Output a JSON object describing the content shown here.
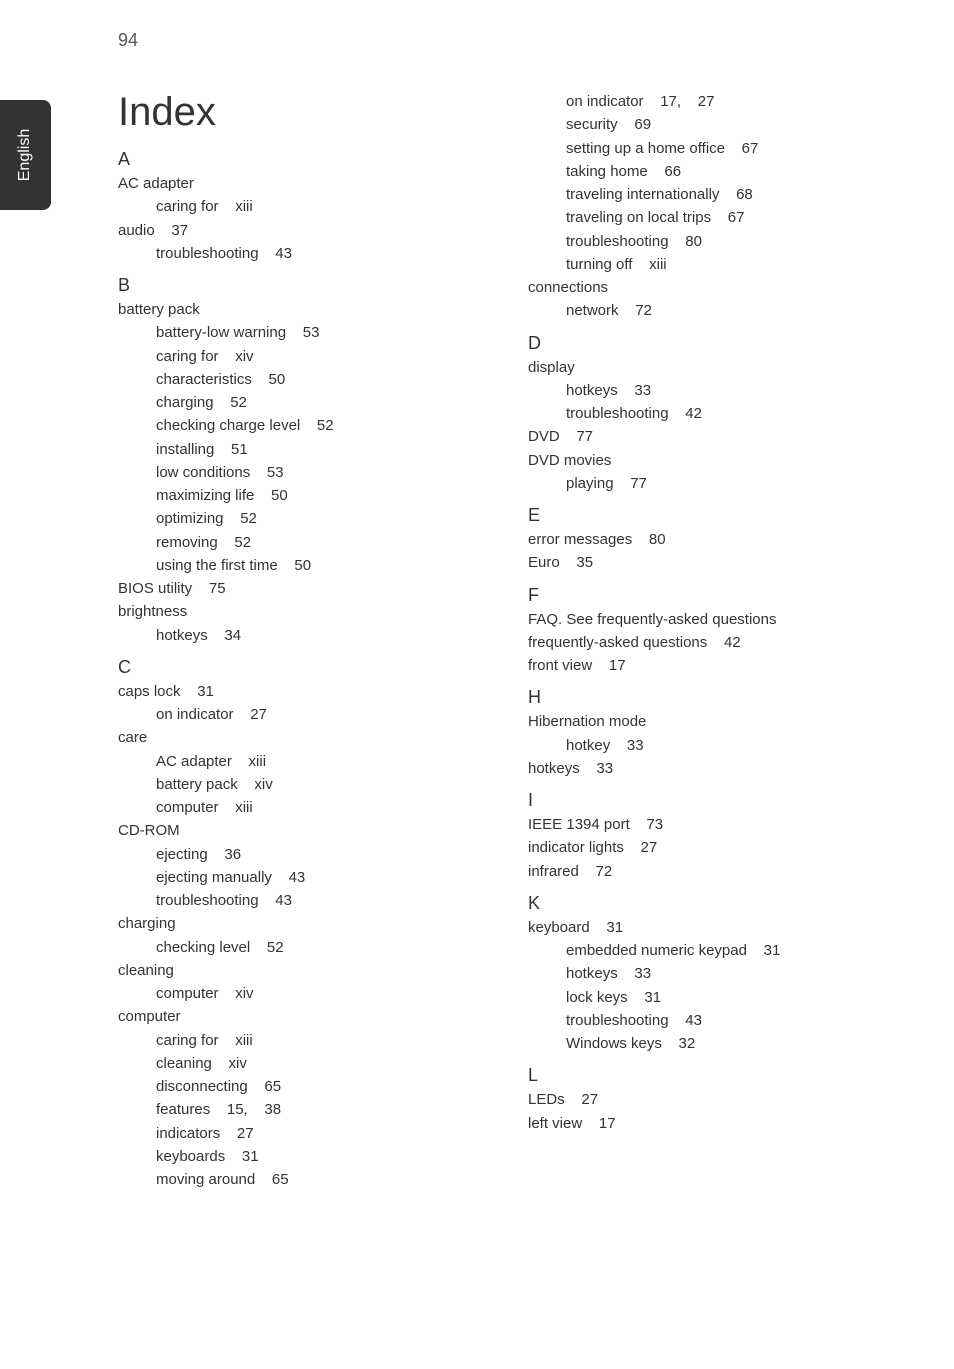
{
  "page_number": "94",
  "side_tab_label": "English",
  "index_title": "Index",
  "left_column": [
    {
      "type": "letter",
      "text": "A"
    },
    {
      "type": "top",
      "text": "AC adapter"
    },
    {
      "type": "sub",
      "text": "caring for    xiii"
    },
    {
      "type": "top",
      "text": "audio    37"
    },
    {
      "type": "sub",
      "text": "troubleshooting    43"
    },
    {
      "type": "letter",
      "text": "B"
    },
    {
      "type": "top",
      "text": "battery pack"
    },
    {
      "type": "sub",
      "text": "battery-low warning    53"
    },
    {
      "type": "sub",
      "text": "caring for    xiv"
    },
    {
      "type": "sub",
      "text": "characteristics    50"
    },
    {
      "type": "sub",
      "text": "charging    52"
    },
    {
      "type": "sub",
      "text": "checking charge level    52"
    },
    {
      "type": "sub",
      "text": "installing    51"
    },
    {
      "type": "sub",
      "text": "low conditions    53"
    },
    {
      "type": "sub",
      "text": "maximizing life    50"
    },
    {
      "type": "sub",
      "text": "optimizing    52"
    },
    {
      "type": "sub",
      "text": "removing    52"
    },
    {
      "type": "sub",
      "text": "using the first time    50"
    },
    {
      "type": "top",
      "text": "BIOS utility    75"
    },
    {
      "type": "top",
      "text": "brightness"
    },
    {
      "type": "sub",
      "text": "hotkeys    34"
    },
    {
      "type": "letter",
      "text": "C"
    },
    {
      "type": "top",
      "text": "caps lock    31"
    },
    {
      "type": "sub",
      "text": "on indicator    27"
    },
    {
      "type": "top",
      "text": "care"
    },
    {
      "type": "sub",
      "text": "AC adapter    xiii"
    },
    {
      "type": "sub",
      "text": "battery pack    xiv"
    },
    {
      "type": "sub",
      "text": "computer    xiii"
    },
    {
      "type": "top",
      "text": "CD-ROM"
    },
    {
      "type": "sub",
      "text": "ejecting    36"
    },
    {
      "type": "sub",
      "text": "ejecting manually    43"
    },
    {
      "type": "sub",
      "text": "troubleshooting    43"
    },
    {
      "type": "top",
      "text": "charging"
    },
    {
      "type": "sub",
      "text": "checking level    52"
    },
    {
      "type": "top",
      "text": "cleaning"
    },
    {
      "type": "sub",
      "text": "computer    xiv"
    },
    {
      "type": "top",
      "text": "computer"
    },
    {
      "type": "sub",
      "text": "caring for    xiii"
    },
    {
      "type": "sub",
      "text": "cleaning    xiv"
    },
    {
      "type": "sub",
      "text": "disconnecting    65"
    },
    {
      "type": "sub",
      "text": "features    15,    38"
    },
    {
      "type": "sub",
      "text": "indicators    27"
    },
    {
      "type": "sub",
      "text": "keyboards    31"
    },
    {
      "type": "sub",
      "text": "moving around    65"
    }
  ],
  "right_column": [
    {
      "type": "sub",
      "text": "on indicator    17,    27"
    },
    {
      "type": "sub",
      "text": "security    69"
    },
    {
      "type": "sub",
      "text": "setting up a home office    67"
    },
    {
      "type": "sub",
      "text": "taking home    66"
    },
    {
      "type": "sub",
      "text": "traveling internationally    68"
    },
    {
      "type": "sub",
      "text": "traveling on local trips    67"
    },
    {
      "type": "sub",
      "text": "troubleshooting    80"
    },
    {
      "type": "sub",
      "text": "turning off    xiii"
    },
    {
      "type": "top",
      "text": "connections"
    },
    {
      "type": "sub",
      "text": "network    72"
    },
    {
      "type": "letter",
      "text": "D"
    },
    {
      "type": "top",
      "text": "display"
    },
    {
      "type": "sub",
      "text": "hotkeys    33"
    },
    {
      "type": "sub",
      "text": "troubleshooting    42"
    },
    {
      "type": "top",
      "text": "DVD    77"
    },
    {
      "type": "top",
      "text": "DVD movies"
    },
    {
      "type": "sub",
      "text": "playing    77"
    },
    {
      "type": "letter",
      "text": "E"
    },
    {
      "type": "top",
      "text": "error messages    80"
    },
    {
      "type": "top",
      "text": "Euro    35"
    },
    {
      "type": "letter",
      "text": "F"
    },
    {
      "type": "top",
      "text": "FAQ. See frequently-asked questions"
    },
    {
      "type": "top",
      "text": "frequently-asked questions    42"
    },
    {
      "type": "top",
      "text": "front view    17"
    },
    {
      "type": "letter",
      "text": "H"
    },
    {
      "type": "top",
      "text": "Hibernation mode"
    },
    {
      "type": "sub",
      "text": "hotkey    33"
    },
    {
      "type": "top",
      "text": "hotkeys    33"
    },
    {
      "type": "letter",
      "text": "I"
    },
    {
      "type": "top",
      "text": "IEEE 1394 port    73"
    },
    {
      "type": "top",
      "text": "indicator lights    27"
    },
    {
      "type": "top",
      "text": "infrared    72"
    },
    {
      "type": "letter",
      "text": "K"
    },
    {
      "type": "top",
      "text": "keyboard    31"
    },
    {
      "type": "sub",
      "text": "embedded numeric keypad    31"
    },
    {
      "type": "sub",
      "text": "hotkeys    33"
    },
    {
      "type": "sub",
      "text": "lock keys    31"
    },
    {
      "type": "sub",
      "text": "troubleshooting    43"
    },
    {
      "type": "sub",
      "text": "Windows keys    32"
    },
    {
      "type": "letter",
      "text": "L"
    },
    {
      "type": "top",
      "text": "LEDs    27"
    },
    {
      "type": "top",
      "text": "left view    17"
    }
  ]
}
